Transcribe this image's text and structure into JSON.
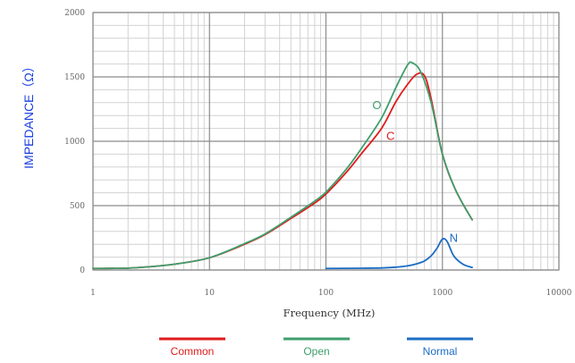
{
  "chart_data": {
    "type": "line",
    "title": "",
    "xlabel": "Frequency (MHz)",
    "ylabel": "IMPEDANCE（Ω）",
    "xscale": "log",
    "xlim": [
      1,
      10000
    ],
    "ylim": [
      0,
      2000
    ],
    "xticks": [
      1,
      10,
      100,
      1000,
      10000
    ],
    "xtick_labels": [
      "1",
      "10",
      "100",
      "1000",
      "10000"
    ],
    "yticks": [
      0,
      500,
      1000,
      1500,
      2000
    ],
    "ytick_labels": [
      "0",
      "500",
      "1000",
      "1500",
      "2000"
    ],
    "grid": true,
    "legend_position": "bottom",
    "series": [
      {
        "name": "Common",
        "color": "#e01b1b",
        "annotation": "C",
        "annotation_at": [
          330,
          1010
        ],
        "points": [
          [
            1,
            12
          ],
          [
            2,
            15
          ],
          [
            3,
            25
          ],
          [
            5,
            45
          ],
          [
            10,
            95
          ],
          [
            20,
            200
          ],
          [
            30,
            275
          ],
          [
            50,
            400
          ],
          [
            80,
            520
          ],
          [
            100,
            590
          ],
          [
            150,
            760
          ],
          [
            200,
            900
          ],
          [
            300,
            1100
          ],
          [
            400,
            1310
          ],
          [
            500,
            1440
          ],
          [
            600,
            1520
          ],
          [
            700,
            1510
          ],
          [
            800,
            1330
          ],
          [
            1000,
            900
          ],
          [
            1300,
            620
          ],
          [
            1800,
            390
          ]
        ]
      },
      {
        "name": "Open",
        "color": "#3f9e6c",
        "annotation": "O",
        "annotation_at": [
          250,
          1250
        ],
        "points": [
          [
            1,
            12
          ],
          [
            2,
            15
          ],
          [
            3,
            25
          ],
          [
            5,
            45
          ],
          [
            10,
            95
          ],
          [
            20,
            205
          ],
          [
            30,
            280
          ],
          [
            50,
            410
          ],
          [
            80,
            535
          ],
          [
            100,
            605
          ],
          [
            150,
            785
          ],
          [
            200,
            940
          ],
          [
            300,
            1180
          ],
          [
            400,
            1420
          ],
          [
            500,
            1590
          ],
          [
            550,
            1610
          ],
          [
            650,
            1540
          ],
          [
            800,
            1300
          ],
          [
            1000,
            900
          ],
          [
            1300,
            620
          ],
          [
            1800,
            390
          ]
        ]
      },
      {
        "name": "Normal",
        "color": "#1c6cc4",
        "annotation": "N",
        "annotation_at": [
          1150,
          220
        ],
        "points": [
          [
            100,
            12
          ],
          [
            200,
            14
          ],
          [
            300,
            16
          ],
          [
            400,
            22
          ],
          [
            500,
            32
          ],
          [
            600,
            48
          ],
          [
            700,
            70
          ],
          [
            800,
            110
          ],
          [
            900,
            170
          ],
          [
            1000,
            240
          ],
          [
            1100,
            220
          ],
          [
            1250,
            110
          ],
          [
            1500,
            45
          ],
          [
            1800,
            20
          ]
        ]
      }
    ]
  }
}
